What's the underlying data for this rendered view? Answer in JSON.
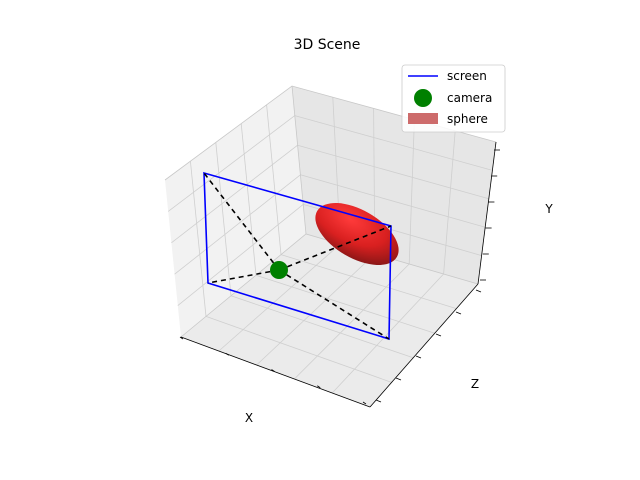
{
  "chart_data": {
    "type": "scatter",
    "projection": "3d",
    "title": "3D Scene",
    "xlabel": "X",
    "ylabel": "Y",
    "zlabel": "Z",
    "grid": true,
    "tick_labels_shown": false,
    "legend_position": "top-right",
    "legend": [
      {
        "name": "screen",
        "kind": "line",
        "color": "#0000ff"
      },
      {
        "name": "camera",
        "kind": "marker",
        "color": "#008000"
      },
      {
        "name": "sphere",
        "kind": "surface",
        "color": "#cd6b6b"
      }
    ],
    "series": [
      {
        "name": "screen",
        "type": "line",
        "color": "#0000ff"
      },
      {
        "name": "camera",
        "type": "scatter",
        "color": "#008000"
      },
      {
        "name": "sphere",
        "type": "surface",
        "color": "#e02020"
      },
      {
        "name": "rays",
        "type": "line",
        "style": "dashed",
        "color": "#000000"
      }
    ]
  }
}
